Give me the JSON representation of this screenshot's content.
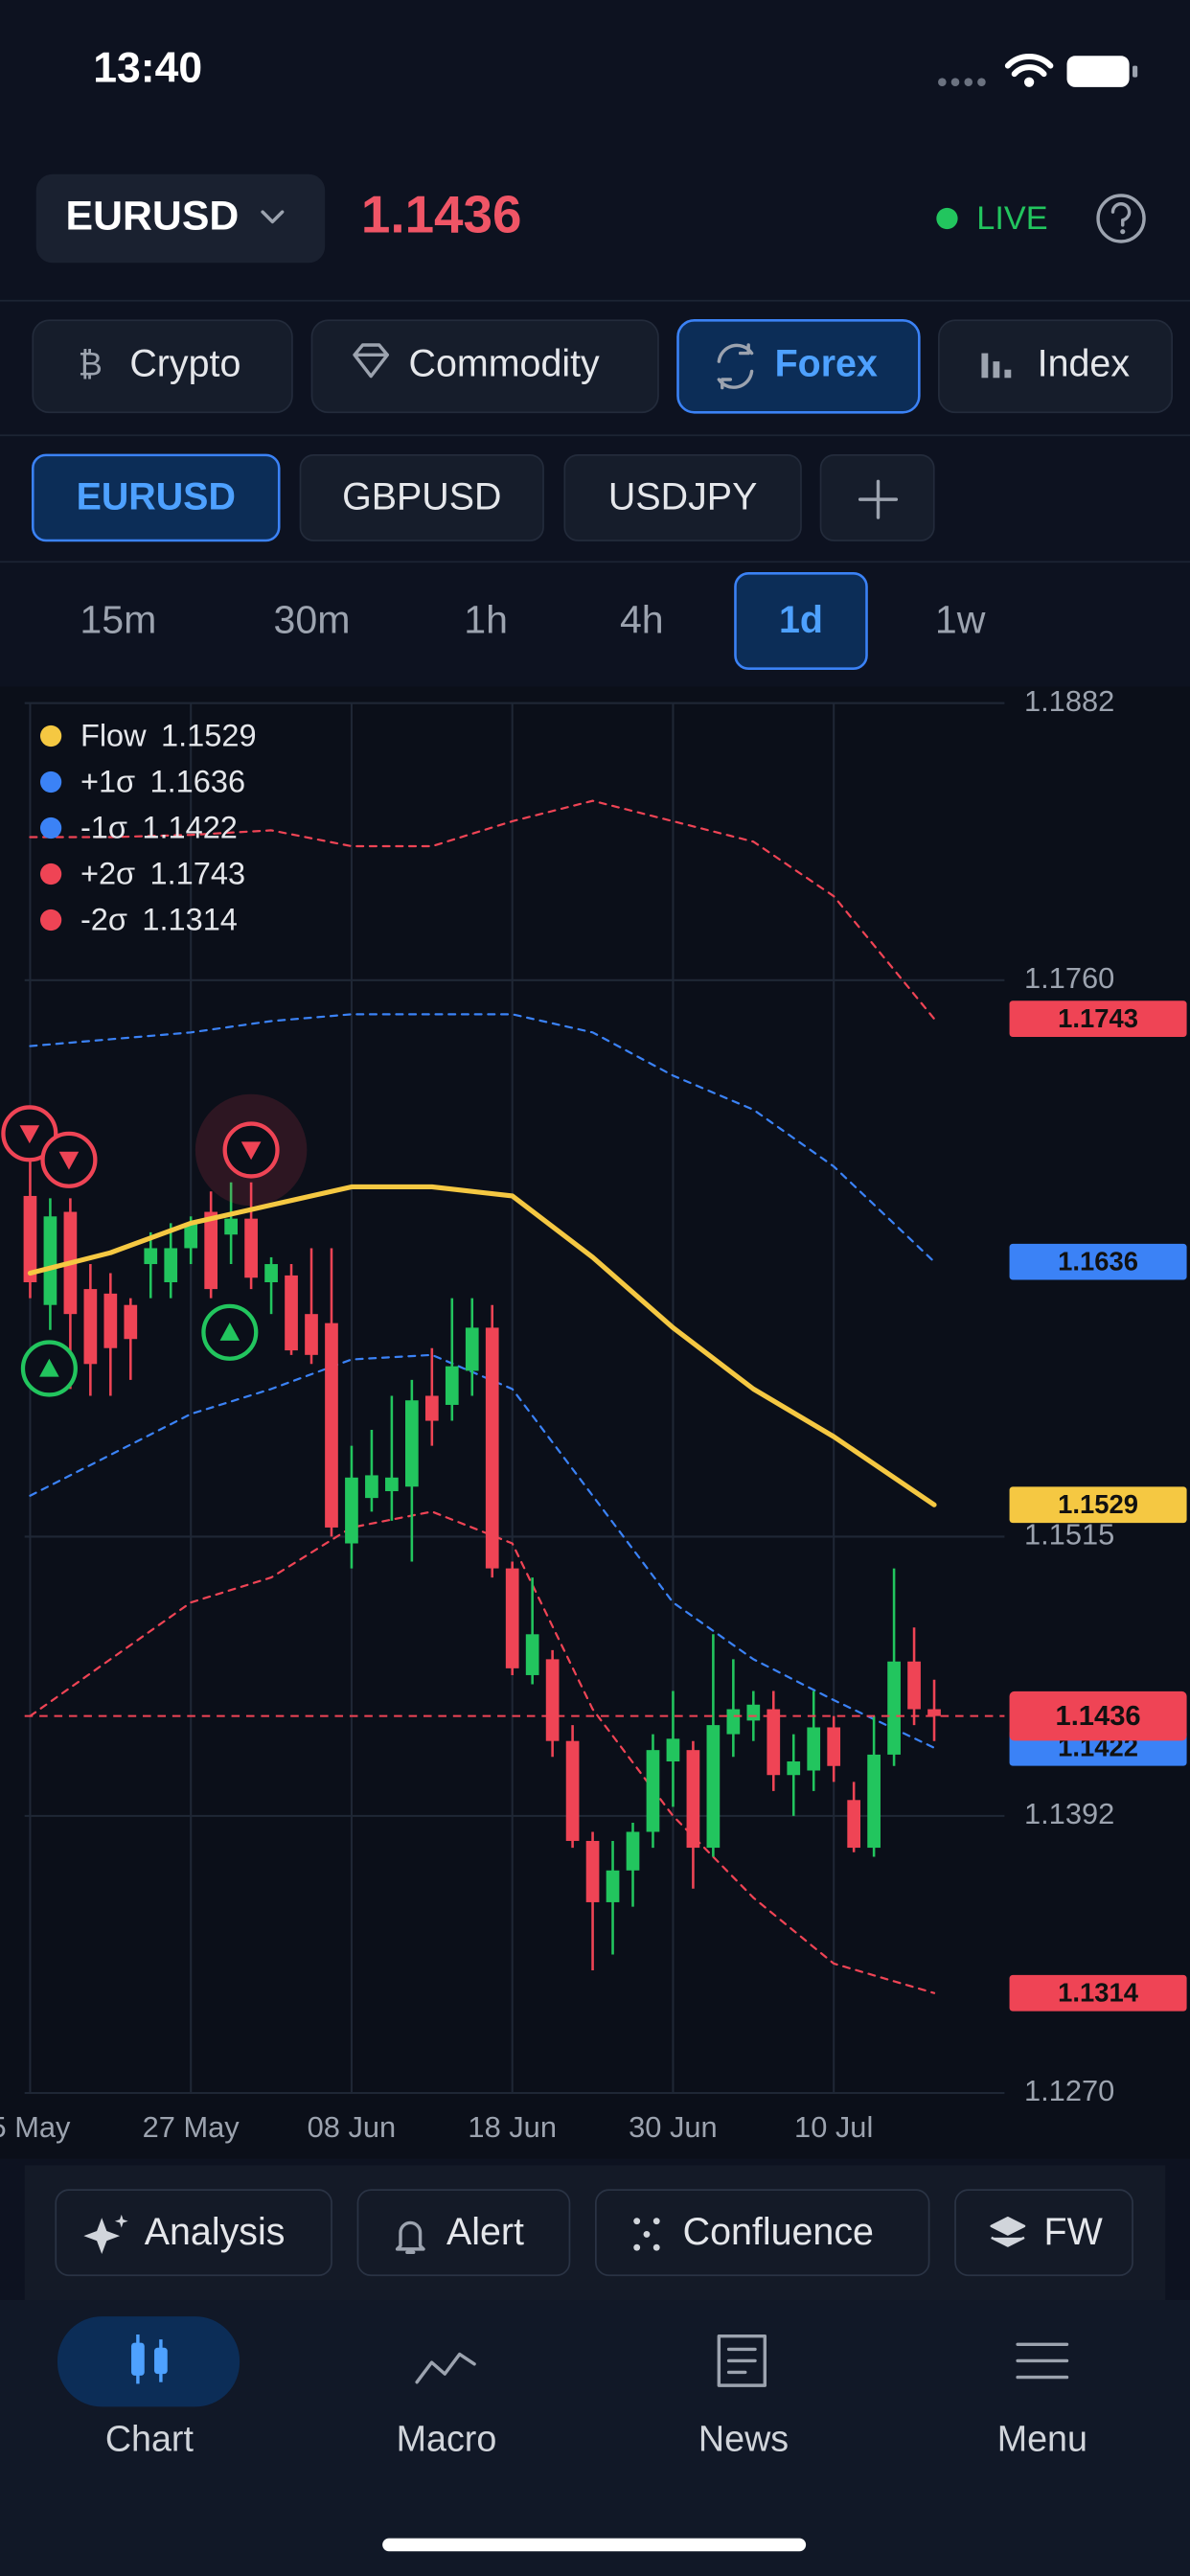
{
  "status_bar": {
    "time": "13:40"
  },
  "header": {
    "symbol": "EURUSD",
    "price": "1.1436",
    "status": "LIVE"
  },
  "asset_tabs": [
    "Crypto",
    "Commodity",
    "Forex",
    "Index"
  ],
  "pair_tabs": [
    "EURUSD",
    "GBPUSD",
    "USDJPY"
  ],
  "timeframes": [
    "15m",
    "30m",
    "1h",
    "4h",
    "1d",
    "1w"
  ],
  "chart_data": {
    "type": "candlestick",
    "x": [
      0,
      1,
      2,
      3,
      4,
      5,
      6,
      7,
      8,
      9,
      10,
      11,
      12,
      13,
      14,
      15,
      16,
      17,
      18,
      19,
      20,
      21,
      22,
      23,
      24,
      25,
      26,
      27,
      28,
      29,
      30,
      31,
      32,
      33,
      34,
      35,
      36,
      37,
      38,
      39,
      40,
      41,
      42,
      43,
      44,
      45
    ],
    "open": [
      1.1665,
      1.1617,
      1.1658,
      1.1624,
      1.1622,
      1.1617,
      1.1635,
      1.1627,
      1.1642,
      1.1658,
      1.1648,
      1.1655,
      1.1627,
      1.163,
      1.1613,
      1.1609,
      1.1512,
      1.1532,
      1.1535,
      1.1537,
      1.1577,
      1.1573,
      1.1588,
      1.1607,
      1.1501,
      1.1454,
      1.1461,
      1.1425,
      1.1381,
      1.1354,
      1.1368,
      1.1385,
      1.1416,
      1.1421,
      1.1378,
      1.1428,
      1.1434,
      1.1439,
      1.141,
      1.1412,
      1.1431,
      1.1399,
      1.1378,
      1.1419,
      1.146,
      1.1439
    ],
    "high": [
      1.1685,
      1.1664,
      1.1664,
      1.1635,
      1.1631,
      1.162,
      1.1649,
      1.1653,
      1.1656,
      1.1667,
      1.1671,
      1.1671,
      1.1638,
      1.1635,
      1.1642,
      1.1642,
      1.1555,
      1.1562,
      1.1577,
      1.1584,
      1.1598,
      1.162,
      1.162,
      1.1617,
      1.1504,
      1.1497,
      1.1465,
      1.1432,
      1.1385,
      1.1381,
      1.1389,
      1.1428,
      1.1447,
      1.1425,
      1.1472,
      1.1461,
      1.1447,
      1.1447,
      1.1428,
      1.1447,
      1.1436,
      1.1407,
      1.1436,
      1.1501,
      1.1475,
      1.1452
    ],
    "low": [
      1.162,
      1.1606,
      1.158,
      1.1577,
      1.1577,
      1.1584,
      1.162,
      1.162,
      1.1635,
      1.162,
      1.1635,
      1.1624,
      1.1613,
      1.1595,
      1.1591,
      1.1515,
      1.1501,
      1.1526,
      1.1522,
      1.1504,
      1.1555,
      1.1566,
      1.1577,
      1.1497,
      1.1454,
      1.145,
      1.1418,
      1.1378,
      1.1324,
      1.1331,
      1.1352,
      1.1378,
      1.1396,
      1.136,
      1.1374,
      1.1418,
      1.1425,
      1.1403,
      1.1392,
      1.1403,
      1.1407,
      1.1376,
      1.1374,
      1.1414,
      1.1432,
      1.1425
    ],
    "close": [
      1.1627,
      1.1656,
      1.1613,
      1.1591,
      1.1598,
      1.1602,
      1.1642,
      1.1642,
      1.1653,
      1.1624,
      1.1655,
      1.1629,
      1.1635,
      1.1597,
      1.1595,
      1.1519,
      1.1541,
      1.1542,
      1.1541,
      1.1575,
      1.1566,
      1.159,
      1.1607,
      1.1501,
      1.1457,
      1.1472,
      1.1425,
      1.1381,
      1.1354,
      1.1368,
      1.1385,
      1.1421,
      1.1426,
      1.1378,
      1.1432,
      1.1439,
      1.1441,
      1.141,
      1.1416,
      1.1431,
      1.1414,
      1.1378,
      1.1419,
      1.146,
      1.1439,
      1.1436
    ],
    "up_color": "#22c55e",
    "down_color": "#ef4455",
    "series": [
      {
        "name": "Flow",
        "color": "#f5c842",
        "dashed": false,
        "x": [
          0,
          4,
          8,
          12,
          16,
          20,
          24,
          28,
          32,
          36,
          40,
          45
        ],
        "values": [
          1.1631,
          1.164,
          1.1653,
          1.1661,
          1.1669,
          1.1669,
          1.1665,
          1.1638,
          1.1607,
          1.158,
          1.1559,
          1.1529
        ]
      },
      {
        "name": "+1σ",
        "color": "#3b82f6",
        "dashed": true,
        "x": [
          0,
          4,
          8,
          12,
          16,
          20,
          24,
          28,
          32,
          36,
          40,
          45
        ],
        "values": [
          1.1731,
          1.1734,
          1.1737,
          1.1742,
          1.1745,
          1.1745,
          1.1745,
          1.1737,
          1.1718,
          1.1703,
          1.1678,
          1.1636
        ]
      },
      {
        "name": "-1σ",
        "color": "#3b82f6",
        "dashed": true,
        "x": [
          0,
          4,
          8,
          12,
          16,
          20,
          24,
          28,
          32,
          36,
          40,
          45
        ],
        "values": [
          1.1533,
          1.1551,
          1.1569,
          1.158,
          1.1593,
          1.1595,
          1.158,
          1.1533,
          1.1486,
          1.1461,
          1.1443,
          1.1422
        ]
      },
      {
        "name": "+2σ",
        "color": "#ef4455",
        "dashed": true,
        "x": [
          0,
          4,
          8,
          12,
          16,
          20,
          24,
          28,
          32,
          36,
          40,
          45
        ],
        "values": [
          1.1823,
          1.1823,
          1.1824,
          1.1826,
          1.1819,
          1.1819,
          1.183,
          1.1839,
          1.183,
          1.1821,
          1.1797,
          1.1743
        ]
      },
      {
        "name": "-2σ",
        "color": "#ef4455",
        "dashed": true,
        "x": [
          0,
          4,
          8,
          12,
          16,
          20,
          24,
          28,
          32,
          36,
          40,
          45
        ],
        "values": [
          1.1436,
          1.1461,
          1.1486,
          1.1497,
          1.1519,
          1.1526,
          1.1512,
          1.1439,
          1.1392,
          1.1356,
          1.1327,
          1.1314
        ]
      }
    ],
    "xlim": [
      -1.5,
      48.5
    ],
    "xticks": [
      {
        "value": 0,
        "label": "5 May"
      },
      {
        "value": 8,
        "label": "27 May"
      },
      {
        "value": 16,
        "label": "08 Jun"
      },
      {
        "value": 24,
        "label": "18 Jun"
      },
      {
        "value": 32,
        "label": "30 Jun"
      },
      {
        "value": 40,
        "label": "10 Jul"
      }
    ],
    "ylim": [
      1.127,
      1.1882
    ],
    "yticks": [
      1.1882,
      {
        "value": 1.176,
        "label": "1.1760"
      },
      1.1515,
      1.1392,
      {
        "value": 1.127,
        "label": "1.1270"
      }
    ],
    "grid": true,
    "legend": "top-left"
  },
  "tools": [
    "Analysis",
    "Alert",
    "Confluence",
    "FW"
  ],
  "nav": [
    "Chart",
    "Macro",
    "News",
    "Menu"
  ]
}
